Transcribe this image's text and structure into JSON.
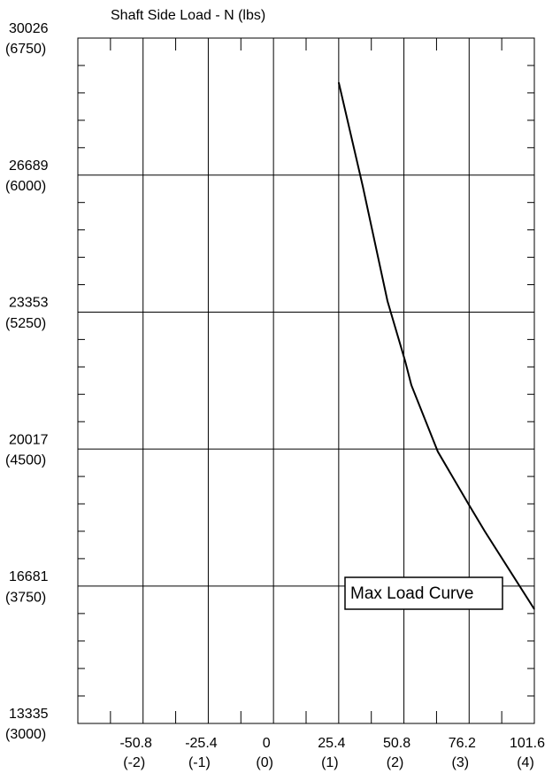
{
  "chart_data": {
    "type": "line",
    "title": "Shaft Side Load - N (lbs)",
    "series": [
      {
        "name": "Max Load Curve",
        "color": "#000000",
        "x": [
          25.4,
          34.75,
          44.4,
          51.3,
          53.7,
          64.0,
          76.1,
          82.3,
          101.6
        ],
        "values": [
          28948,
          26425,
          23621,
          22155,
          21573,
          19955,
          18661,
          18014,
          16117
        ]
      }
    ],
    "xlim": [
      -76.2,
      101.6
    ],
    "xticks": [
      -50.8,
      -25.4,
      0,
      25.4,
      50.8,
      76.2,
      101.6
    ],
    "x2lim": [
      -3,
      4
    ],
    "x2ticks": [
      {
        "value": -2,
        "label": "(-2)"
      },
      {
        "value": -1,
        "label": "(-1)"
      },
      {
        "value": 0,
        "label": "(0)"
      },
      {
        "value": 1,
        "label": "(1)"
      },
      {
        "value": 2,
        "label": "(2)"
      },
      {
        "value": 3,
        "label": "(3)"
      },
      {
        "value": 4,
        "label": "(4)"
      }
    ],
    "ylim": [
      13335,
      30026
    ],
    "yticks": [
      13335,
      16681,
      20017,
      23353,
      26689,
      30026
    ],
    "y2lim": [
      3000,
      6750
    ],
    "y2ticks": [
      {
        "value": 3000,
        "label": "(3000)"
      },
      {
        "value": 3750,
        "label": "(3750)"
      },
      {
        "value": 4500,
        "label": "(4500)"
      },
      {
        "value": 5250,
        "label": "(5250)"
      },
      {
        "value": 6000,
        "label": "(6000)"
      },
      {
        "value": 6750,
        "label": "(6750)"
      }
    ],
    "grid": true
  }
}
